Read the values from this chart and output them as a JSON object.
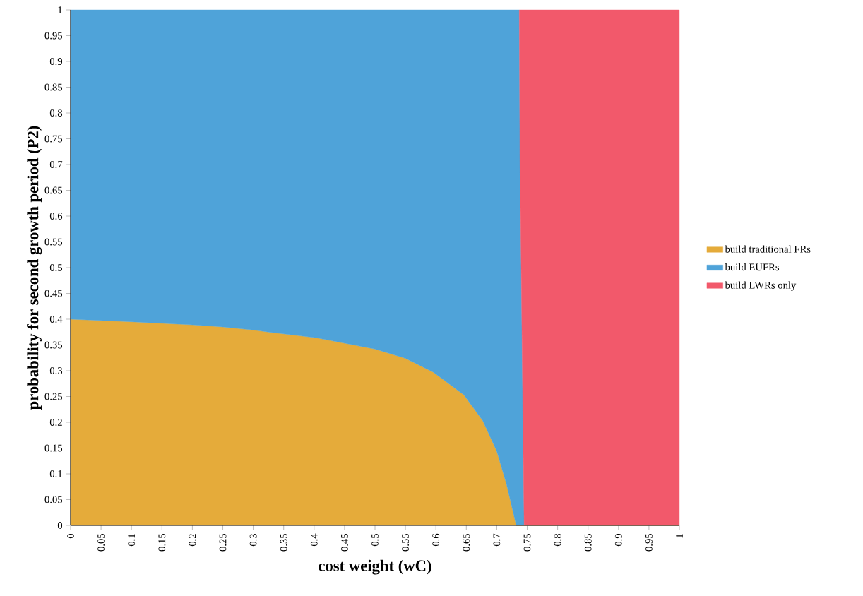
{
  "chart_data": {
    "type": "area",
    "stacked": true,
    "xlabel": "cost weight (wC)",
    "ylabel": "probability for second growth period (P2)",
    "x": [
      0,
      0.1,
      0.2,
      0.25,
      0.3,
      0.325,
      0.403,
      0.5,
      0.55,
      0.596,
      0.646,
      0.677,
      0.7,
      0.716,
      0.732,
      0.737,
      0.738,
      0.745,
      1
    ],
    "series": [
      {
        "name": "build traditional FRs",
        "color": "#e5ab3a",
        "values": [
          0.4,
          0.395,
          0.389,
          0.385,
          0.379,
          0.375,
          0.364,
          0.342,
          0.324,
          0.297,
          0.253,
          0.203,
          0.144,
          0.08,
          0,
          0,
          0,
          0,
          0
        ]
      },
      {
        "name": "build EUFRs",
        "color": "#4fa3d9",
        "values": [
          0.6,
          0.605,
          0.611,
          0.615,
          0.621,
          0.625,
          0.636,
          0.658,
          0.676,
          0.703,
          0.747,
          0.797,
          0.856,
          0.92,
          1,
          1,
          0.72,
          0,
          null
        ]
      },
      {
        "name": "build LWRs only",
        "color": "#f2596b",
        "values": [
          null,
          null,
          null,
          null,
          null,
          null,
          null,
          null,
          null,
          null,
          null,
          null,
          null,
          null,
          null,
          0,
          0.28,
          1,
          1
        ]
      }
    ],
    "xlim": [
      0,
      1
    ],
    "ylim": [
      0,
      1
    ],
    "xticks": [
      0,
      0.05,
      0.1,
      0.15,
      0.2,
      0.25,
      0.3,
      0.35,
      0.4,
      0.45,
      0.5,
      0.55,
      0.6,
      0.65,
      0.7,
      0.75,
      0.8,
      0.85,
      0.9,
      0.95,
      1
    ],
    "yticks": [
      0,
      0.05,
      0.1,
      0.15,
      0.2,
      0.25,
      0.3,
      0.35,
      0.4,
      0.45,
      0.5,
      0.55,
      0.6,
      0.65,
      0.7,
      0.75,
      0.8,
      0.85,
      0.9,
      0.95,
      1
    ],
    "legend": "right"
  }
}
